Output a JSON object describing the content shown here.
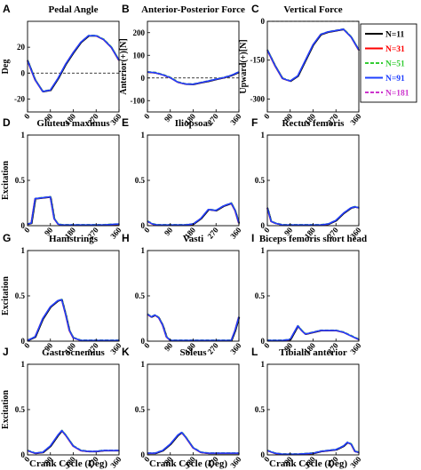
{
  "legend": [
    {
      "label": "N=11",
      "color": "#000000",
      "dash": "solid"
    },
    {
      "label": "N=31",
      "color": "#ff0000",
      "dash": "solid"
    },
    {
      "label": "N=51",
      "color": "#33cc33",
      "dash": "dashed"
    },
    {
      "label": "N=91",
      "color": "#1f3fff",
      "dash": "solid"
    },
    {
      "label": "N=181",
      "color": "#cc33cc",
      "dash": "dashed"
    }
  ],
  "x_axis_label": "Crank Cycle (Deg)",
  "chart_data": [
    {
      "letter": "A",
      "title": "Pedal Angle",
      "type": "line",
      "ylabel": "Deg",
      "xlim": [
        0,
        360
      ],
      "ylim": [
        -30,
        40
      ],
      "yticks": [
        -20,
        0,
        20
      ],
      "xticks": [
        0,
        90,
        180,
        270,
        360
      ],
      "zero_line": true,
      "x": [
        0,
        30,
        60,
        90,
        120,
        150,
        180,
        210,
        240,
        270,
        300,
        330,
        360
      ],
      "values": [
        10,
        -5,
        -14,
        -13,
        -4,
        7,
        16,
        24,
        29,
        29,
        26,
        20,
        10
      ]
    },
    {
      "letter": "B",
      "title": "Anterior-Posterior Force",
      "type": "line",
      "ylabel": "Anterior(+)[N]",
      "xlim": [
        0,
        360
      ],
      "ylim": [
        -150,
        250
      ],
      "yticks": [
        -100,
        0,
        100,
        200
      ],
      "xticks": [
        0,
        90,
        180,
        270,
        360
      ],
      "zero_line": true,
      "x": [
        0,
        30,
        60,
        90,
        120,
        150,
        180,
        210,
        240,
        270,
        300,
        330,
        360
      ],
      "values": [
        27,
        24,
        15,
        2,
        -18,
        -26,
        -27,
        -20,
        -13,
        -5,
        2,
        12,
        27
      ]
    },
    {
      "letter": "C",
      "title": "Vertical Force",
      "type": "line",
      "ylabel": "Upward(+)[N]",
      "xlim": [
        0,
        360
      ],
      "ylim": [
        -350,
        0
      ],
      "yticks": [
        -300,
        -150,
        0
      ],
      "xticks": [
        0,
        90,
        180,
        270,
        360
      ],
      "zero_line": true,
      "x": [
        0,
        30,
        60,
        90,
        120,
        150,
        180,
        210,
        240,
        270,
        300,
        330,
        360
      ],
      "values": [
        -110,
        -170,
        -220,
        -230,
        -210,
        -150,
        -90,
        -50,
        -40,
        -35,
        -30,
        -60,
        -110
      ]
    },
    {
      "letter": "D",
      "title": "Gluteus maximus",
      "type": "line",
      "ylabel": "Excitation",
      "xlim": [
        0,
        360
      ],
      "ylim": [
        0,
        1
      ],
      "yticks": [
        0,
        0.5,
        1
      ],
      "xticks": [
        0,
        90,
        180,
        270,
        360
      ],
      "x": [
        0,
        15,
        30,
        60,
        90,
        105,
        120,
        135,
        150,
        180,
        240,
        300,
        360
      ],
      "values": [
        0.02,
        0.03,
        0.3,
        0.31,
        0.32,
        0.08,
        0.02,
        0.01,
        0.01,
        0.01,
        0.01,
        0.01,
        0.02
      ]
    },
    {
      "letter": "E",
      "title": "Iliopsoas",
      "type": "line",
      "ylabel": "",
      "xlim": [
        0,
        360
      ],
      "ylim": [
        0,
        1
      ],
      "yticks": [
        0,
        0.5,
        1
      ],
      "xticks": [
        0,
        90,
        180,
        270,
        360
      ],
      "x": [
        0,
        20,
        40,
        90,
        150,
        180,
        210,
        240,
        270,
        300,
        330,
        345,
        360
      ],
      "values": [
        0.05,
        0.02,
        0.01,
        0.01,
        0.01,
        0.02,
        0.08,
        0.18,
        0.17,
        0.22,
        0.25,
        0.17,
        0.03
      ]
    },
    {
      "letter": "F",
      "title": "Rectus femoris",
      "type": "line",
      "ylabel": "",
      "xlim": [
        0,
        360
      ],
      "ylim": [
        0,
        1
      ],
      "yticks": [
        0,
        0.5,
        1
      ],
      "xticks": [
        0,
        90,
        180,
        270,
        360
      ],
      "x": [
        0,
        15,
        30,
        60,
        90,
        150,
        210,
        240,
        270,
        300,
        330,
        345,
        360
      ],
      "values": [
        0.2,
        0.05,
        0.03,
        0.01,
        0.01,
        0.01,
        0.01,
        0.02,
        0.06,
        0.14,
        0.2,
        0.21,
        0.2
      ]
    },
    {
      "letter": "G",
      "title": "Hamstrings",
      "type": "line",
      "ylabel": "Excitation",
      "xlim": [
        0,
        360
      ],
      "ylim": [
        0,
        1
      ],
      "yticks": [
        0,
        0.5,
        1
      ],
      "xticks": [
        0,
        90,
        180,
        270,
        360
      ],
      "x": [
        0,
        30,
        45,
        60,
        90,
        120,
        135,
        150,
        165,
        180,
        210,
        270,
        360
      ],
      "values": [
        0.01,
        0.05,
        0.15,
        0.25,
        0.38,
        0.45,
        0.46,
        0.3,
        0.12,
        0.04,
        0.01,
        0.01,
        0.01
      ]
    },
    {
      "letter": "H",
      "title": "Vasti",
      "type": "line",
      "ylabel": "",
      "xlim": [
        0,
        360
      ],
      "ylim": [
        0,
        1
      ],
      "yticks": [
        0,
        0.5,
        1
      ],
      "xticks": [
        0,
        90,
        180,
        270,
        360
      ],
      "x": [
        0,
        15,
        30,
        45,
        60,
        75,
        90,
        150,
        210,
        270,
        330,
        345,
        360
      ],
      "values": [
        0.3,
        0.27,
        0.29,
        0.26,
        0.18,
        0.05,
        0.01,
        0.01,
        0.01,
        0.01,
        0.01,
        0.12,
        0.27
      ]
    },
    {
      "letter": "I",
      "title": "Biceps femoris short head",
      "type": "line",
      "ylabel": "",
      "xlim": [
        0,
        360
      ],
      "ylim": [
        0,
        1
      ],
      "yticks": [
        0,
        0.5,
        1
      ],
      "xticks": [
        0,
        90,
        180,
        270,
        360
      ],
      "x": [
        0,
        60,
        90,
        120,
        135,
        150,
        180,
        210,
        240,
        270,
        300,
        330,
        360
      ],
      "values": [
        0.01,
        0.01,
        0.02,
        0.17,
        0.12,
        0.08,
        0.1,
        0.12,
        0.12,
        0.12,
        0.1,
        0.06,
        0.02
      ]
    },
    {
      "letter": "J",
      "title": "Gastrocnemius",
      "type": "line",
      "ylabel": "Excitation",
      "xlim": [
        0,
        360
      ],
      "ylim": [
        0,
        1
      ],
      "yticks": [
        0,
        0.5,
        1
      ],
      "xticks": [
        0,
        90,
        180,
        270,
        360
      ],
      "x": [
        0,
        30,
        60,
        90,
        120,
        135,
        150,
        180,
        210,
        240,
        270,
        300,
        360
      ],
      "values": [
        0.05,
        0.02,
        0.03,
        0.1,
        0.22,
        0.27,
        0.22,
        0.1,
        0.05,
        0.04,
        0.04,
        0.05,
        0.05
      ]
    },
    {
      "letter": "K",
      "title": "Soleus",
      "type": "line",
      "ylabel": "",
      "xlim": [
        0,
        360
      ],
      "ylim": [
        0,
        1
      ],
      "yticks": [
        0,
        0.5,
        1
      ],
      "xticks": [
        0,
        90,
        180,
        270,
        360
      ],
      "x": [
        0,
        30,
        60,
        90,
        120,
        135,
        150,
        180,
        210,
        240,
        270,
        300,
        360
      ],
      "values": [
        0.02,
        0.02,
        0.05,
        0.12,
        0.22,
        0.25,
        0.2,
        0.08,
        0.03,
        0.02,
        0.02,
        0.02,
        0.02
      ]
    },
    {
      "letter": "L",
      "title": "Tibialis anterior",
      "type": "line",
      "ylabel": "",
      "xlim": [
        0,
        360
      ],
      "ylim": [
        0,
        1
      ],
      "yticks": [
        0,
        0.5,
        1
      ],
      "xticks": [
        0,
        90,
        180,
        270,
        360
      ],
      "x": [
        0,
        30,
        60,
        120,
        180,
        210,
        240,
        270,
        300,
        315,
        330,
        345,
        360
      ],
      "values": [
        0.05,
        0.02,
        0.01,
        0.01,
        0.02,
        0.04,
        0.05,
        0.06,
        0.1,
        0.14,
        0.12,
        0.04,
        0.03
      ]
    }
  ]
}
